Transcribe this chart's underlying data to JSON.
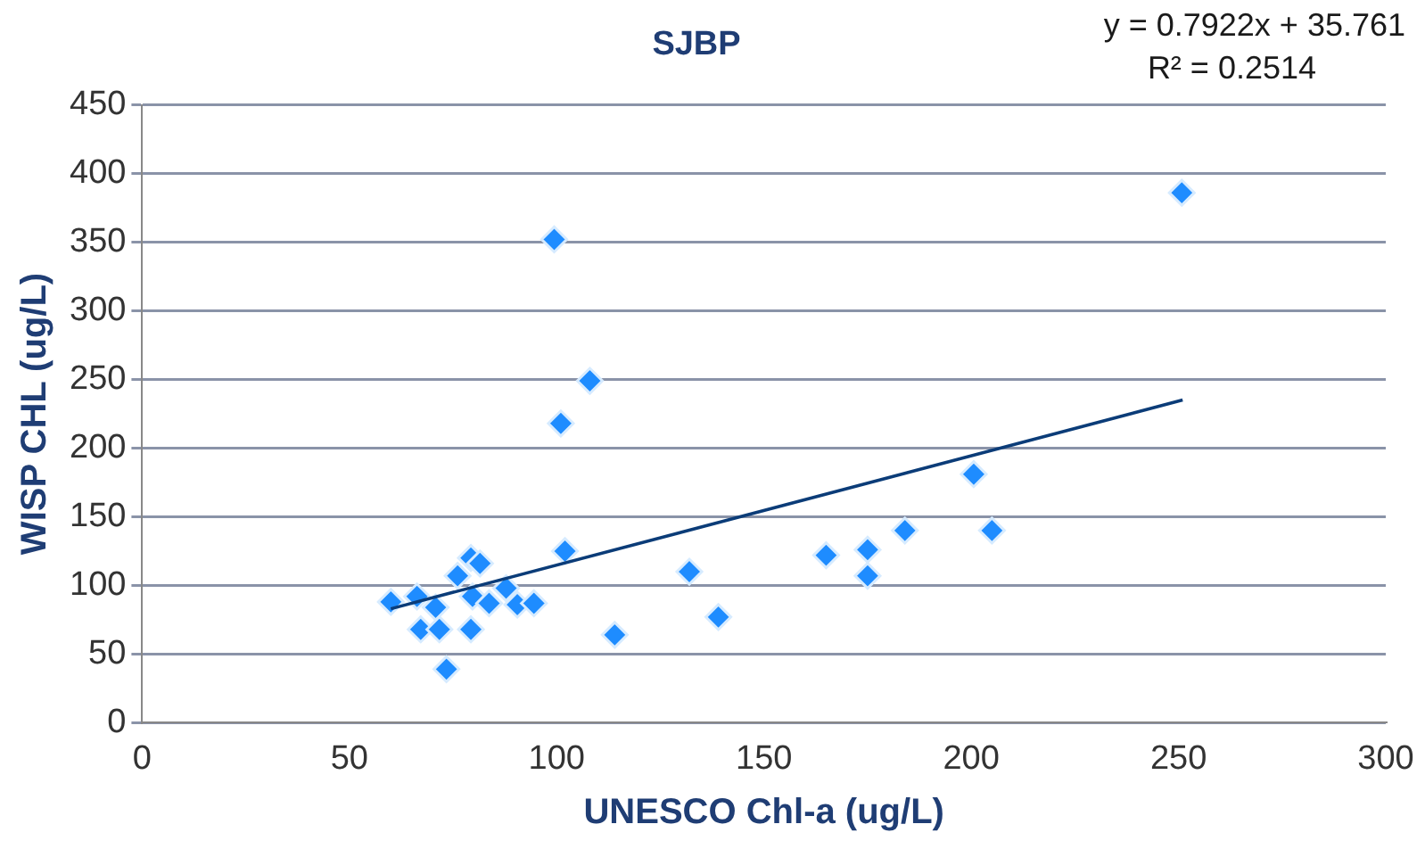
{
  "chart_data": {
    "type": "scatter",
    "title": "SJBP",
    "xlabel": "UNESCO Chl-a (ug/L)",
    "ylabel": "WISP CHL (ug/L)",
    "annotations": [
      "y = 0.7922x + 35.761",
      "R² = 0.2514"
    ],
    "xlim": [
      0,
      300
    ],
    "xticks": [
      0,
      50,
      100,
      150,
      200,
      250,
      300
    ],
    "ylim": [
      0,
      450
    ],
    "yticks": [
      0,
      50,
      100,
      150,
      200,
      250,
      300,
      350,
      400,
      450
    ],
    "grid": "y",
    "legend": false,
    "marker": "diamond",
    "series": [
      {
        "color": "#1e8cff",
        "x": [
          60,
          66.3,
          70.8,
          67.2,
          71.7,
          73.4,
          76.1,
          79.3,
          81.5,
          79.7,
          79.3,
          83.7,
          87.8,
          90.5,
          94.5,
          102,
          114,
          132,
          139,
          99.4,
          108,
          101,
          200.6,
          184,
          205,
          165,
          175,
          175,
          250.8
        ],
        "values": [
          88,
          92,
          84,
          68,
          68,
          39,
          107,
          120,
          116,
          92,
          68,
          87,
          98,
          86,
          87,
          125,
          64,
          110,
          77,
          352,
          249,
          218,
          181,
          140,
          140,
          122,
          126,
          107,
          386
        ]
      },
      {
        "type": "line",
        "color": "#0b3c78",
        "marker": "none",
        "x": [
          60,
          251
        ],
        "values": [
          83,
          235
        ]
      }
    ]
  }
}
